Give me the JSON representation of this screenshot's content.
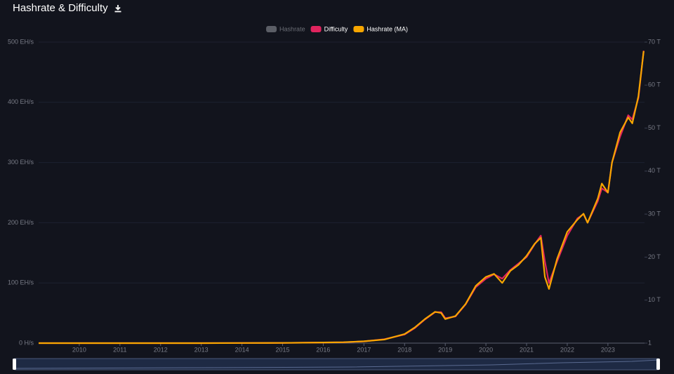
{
  "chart_data": {
    "type": "line",
    "title": "Hashrate & Difficulty",
    "x": [
      2009,
      2010,
      2011,
      2012,
      2013,
      2014,
      2015,
      2016,
      2016.5,
      2017,
      2017.5,
      2018,
      2018.25,
      2018.5,
      2018.75,
      2018.9,
      2019,
      2019.25,
      2019.5,
      2019.75,
      2020,
      2020.2,
      2020.4,
      2020.6,
      2020.8,
      2021,
      2021.2,
      2021.35,
      2021.45,
      2021.55,
      2021.75,
      2022,
      2022.25,
      2022.4,
      2022.5,
      2022.75,
      2022.85,
      2023,
      2023.1,
      2023.3,
      2023.5,
      2023.6,
      2023.75,
      2023.88
    ],
    "xlim": [
      2009,
      2023.9
    ],
    "xticks": [
      2010,
      2011,
      2012,
      2013,
      2014,
      2015,
      2016,
      2017,
      2018,
      2019,
      2020,
      2021,
      2022,
      2023
    ],
    "ylim": [
      0,
      500
    ],
    "yticks": [
      {
        "value": 0,
        "label": "0 H/s"
      },
      {
        "value": 100,
        "label": "100 EH/s"
      },
      {
        "value": 200,
        "label": "200 EH/s"
      },
      {
        "value": 300,
        "label": "300 EH/s"
      },
      {
        "value": 400,
        "label": "400 EH/s"
      },
      {
        "value": 500,
        "label": "500 EH/s"
      }
    ],
    "y2lim": [
      0,
      70
    ],
    "y2ticks": [
      {
        "value": 1e-12,
        "label": "1"
      },
      {
        "value": 10,
        "label": "10 T"
      },
      {
        "value": 20,
        "label": "20 T"
      },
      {
        "value": 30,
        "label": "30 T"
      },
      {
        "value": 40,
        "label": "40 T"
      },
      {
        "value": 50,
        "label": "50 T"
      },
      {
        "value": 60,
        "label": "60 T"
      },
      {
        "value": 70,
        "label": "70 T"
      }
    ],
    "grid": true,
    "series": [
      {
        "name": "Hashrate",
        "color": "#6b6e76",
        "hidden": true
      },
      {
        "name": "Difficulty",
        "color": "#e0245e",
        "axis": "y2",
        "values": [
          0,
          0,
          0,
          0,
          0,
          0.03,
          0.05,
          0.15,
          0.2,
          0.4,
          0.9,
          2,
          3.5,
          5.5,
          7.2,
          7.2,
          5.8,
          6.2,
          9,
          13,
          15,
          16,
          15,
          17,
          18.5,
          20,
          23,
          25,
          19,
          14,
          19,
          25,
          29,
          30,
          28,
          33,
          36,
          35,
          42,
          48,
          53,
          52,
          57,
          68
        ]
      },
      {
        "name": "Hashrate (MA)",
        "color": "#f7a600",
        "values": [
          0,
          0,
          0.01,
          0.02,
          0.01,
          0.2,
          0.4,
          1,
          1.5,
          3,
          6,
          15,
          26,
          40,
          52,
          50,
          40,
          45,
          65,
          95,
          110,
          115,
          100,
          120,
          130,
          145,
          165,
          175,
          110,
          90,
          140,
          185,
          205,
          215,
          200,
          240,
          265,
          250,
          300,
          350,
          375,
          365,
          410,
          485
        ]
      }
    ]
  }
}
